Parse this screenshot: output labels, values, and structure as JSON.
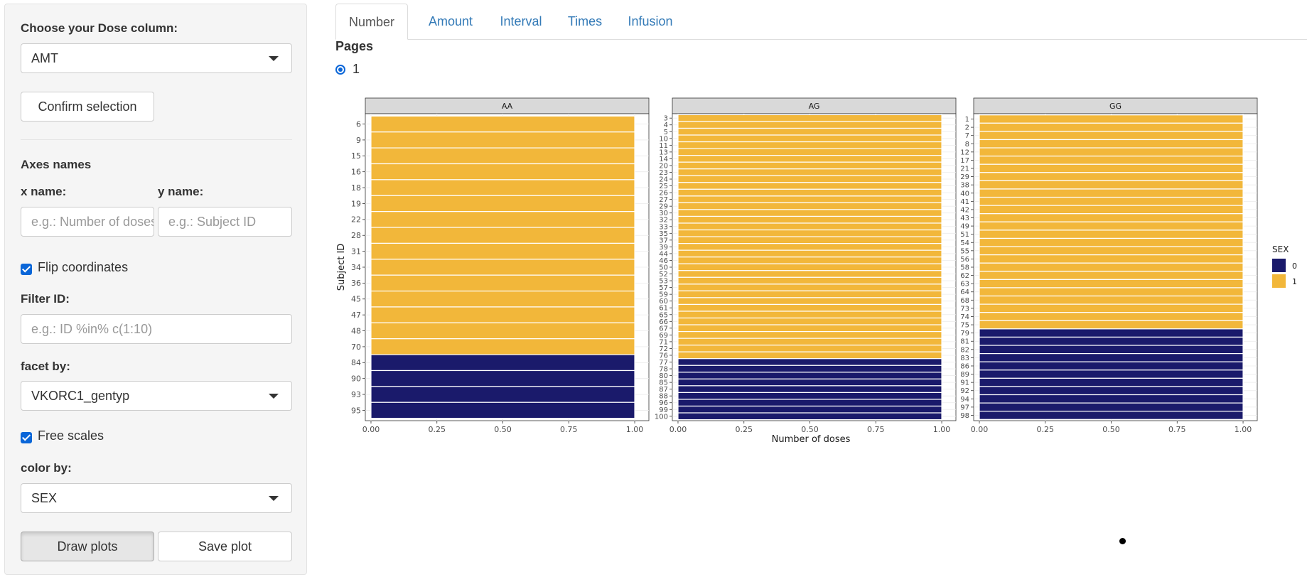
{
  "sidebar": {
    "dose_label": "Choose your Dose column:",
    "dose_value": "AMT",
    "confirm_label": "Confirm selection",
    "axes_label": "Axes names",
    "xname_label": "x name:",
    "xname_placeholder": "e.g.: Number of doses",
    "yname_label": "y name:",
    "yname_placeholder": "e.g.: Subject ID",
    "flip_label": "Flip coordinates",
    "flip_checked": true,
    "filter_label": "Filter ID:",
    "filter_placeholder": "e.g.: ID %in% c(1:10)",
    "facet_label": "facet by:",
    "facet_value": "VKORC1_gentyp",
    "free_label": "Free scales",
    "free_checked": true,
    "color_label": "color by:",
    "color_value": "SEX",
    "draw_label": "Draw plots",
    "save_label": "Save plot"
  },
  "tabs": [
    "Number",
    "Amount",
    "Interval",
    "Times",
    "Infusion"
  ],
  "active_tab": "Number",
  "pages": {
    "label": "Pages",
    "options": [
      "1"
    ],
    "selected": "1"
  },
  "chart_data": {
    "type": "bar",
    "orientation": "horizontal",
    "xlabel": "Number of doses",
    "ylabel": "Subject ID",
    "xlim": [
      0,
      1
    ],
    "xticks": [
      "0.00",
      "0.25",
      "0.50",
      "0.75",
      "1.00"
    ],
    "legend": {
      "title": "SEX",
      "position": "right",
      "entries": [
        {
          "label": "0",
          "color": "#1a1a6b"
        },
        {
          "label": "1",
          "color": "#f2b73a"
        }
      ]
    },
    "facets": [
      {
        "name": "AA",
        "ids": [
          "6",
          "9",
          "15",
          "16",
          "18",
          "19",
          "22",
          "28",
          "31",
          "34",
          "36",
          "45",
          "47",
          "48",
          "70",
          "84",
          "90",
          "93",
          "95"
        ],
        "sex": [
          1,
          1,
          1,
          1,
          1,
          1,
          1,
          1,
          1,
          1,
          1,
          1,
          1,
          1,
          1,
          0,
          0,
          0,
          0
        ],
        "values": [
          1,
          1,
          1,
          1,
          1,
          1,
          1,
          1,
          1,
          1,
          1,
          1,
          1,
          1,
          1,
          1,
          1,
          1,
          1
        ]
      },
      {
        "name": "AG",
        "ids": [
          "3",
          "4",
          "5",
          "10",
          "11",
          "13",
          "14",
          "20",
          "23",
          "24",
          "25",
          "26",
          "27",
          "29",
          "30",
          "32",
          "33",
          "35",
          "37",
          "39",
          "44",
          "46",
          "50",
          "52",
          "53",
          "57",
          "59",
          "60",
          "61",
          "65",
          "66",
          "67",
          "69",
          "71",
          "72",
          "76",
          "77",
          "78",
          "80",
          "85",
          "87",
          "88",
          "96",
          "99",
          "100"
        ],
        "sex": [
          1,
          1,
          1,
          1,
          1,
          1,
          1,
          1,
          1,
          1,
          1,
          1,
          1,
          1,
          1,
          1,
          1,
          1,
          1,
          1,
          1,
          1,
          1,
          1,
          1,
          1,
          1,
          1,
          1,
          1,
          1,
          1,
          1,
          1,
          1,
          1,
          0,
          0,
          0,
          0,
          0,
          0,
          0,
          0,
          0
        ],
        "values": [
          1,
          1,
          1,
          1,
          1,
          1,
          1,
          1,
          1,
          1,
          1,
          1,
          1,
          1,
          1,
          1,
          1,
          1,
          1,
          1,
          1,
          1,
          1,
          1,
          1,
          1,
          1,
          1,
          1,
          1,
          1,
          1,
          1,
          1,
          1,
          1,
          1,
          1,
          1,
          1,
          1,
          1,
          1,
          1,
          1
        ]
      },
      {
        "name": "GG",
        "ids": [
          "1",
          "2",
          "7",
          "8",
          "12",
          "17",
          "21",
          "29",
          "38",
          "40",
          "41",
          "42",
          "43",
          "49",
          "51",
          "54",
          "55",
          "56",
          "58",
          "62",
          "63",
          "64",
          "68",
          "73",
          "74",
          "75",
          "79",
          "81",
          "82",
          "83",
          "86",
          "89",
          "91",
          "92",
          "94",
          "97",
          "98"
        ],
        "sex": [
          1,
          1,
          1,
          1,
          1,
          1,
          1,
          1,
          1,
          1,
          1,
          1,
          1,
          1,
          1,
          1,
          1,
          1,
          1,
          1,
          1,
          1,
          1,
          1,
          1,
          1,
          0,
          0,
          0,
          0,
          0,
          0,
          0,
          0,
          0,
          0,
          0
        ],
        "values": [
          1,
          1,
          1,
          1,
          1,
          1,
          1,
          1,
          1,
          1,
          1,
          1,
          1,
          1,
          1,
          1,
          1,
          1,
          1,
          1,
          1,
          1,
          1,
          1,
          1,
          1,
          1,
          1,
          1,
          1,
          1,
          1,
          1,
          1,
          1,
          1,
          1
        ]
      }
    ]
  }
}
